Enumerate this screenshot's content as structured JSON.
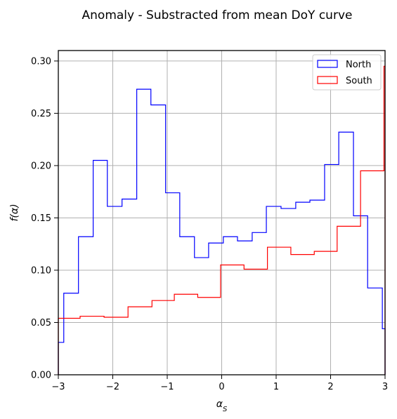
{
  "chart_data": {
    "type": "histogram-step",
    "title": "Anomaly - Substracted from mean DoY curve",
    "xlabel": "α_S",
    "xlabel_main": "α",
    "xlabel_sub": "S",
    "ylabel": "f(α)",
    "xlim": [
      -3,
      3
    ],
    "ylim": [
      0,
      0.31
    ],
    "xticks": [
      -3,
      -2,
      -1,
      0,
      1,
      2,
      3
    ],
    "xtick_labels": [
      "−3",
      "−2",
      "−1",
      "0",
      "1",
      "2",
      "3"
    ],
    "yticks": [
      0.0,
      0.05,
      0.1,
      0.15,
      0.2,
      0.25,
      0.3
    ],
    "ytick_labels": [
      "0.00",
      "0.05",
      "0.10",
      "0.15",
      "0.20",
      "0.25",
      "0.30"
    ],
    "grid": true,
    "legend_position": "top-right",
    "series": [
      {
        "name": "North",
        "color": "#0000ff",
        "edges": [
          -3.0,
          -2.9,
          -2.63,
          -2.36,
          -2.1,
          -1.83,
          -1.56,
          -1.3,
          -1.03,
          -0.77,
          -0.5,
          -0.24,
          0.03,
          0.29,
          0.56,
          0.82,
          1.09,
          1.36,
          1.62,
          1.89,
          2.15,
          2.42,
          2.68,
          2.95,
          3.0
        ],
        "values": [
          0.031,
          0.078,
          0.132,
          0.205,
          0.161,
          0.168,
          0.273,
          0.258,
          0.174,
          0.132,
          0.112,
          0.126,
          0.132,
          0.128,
          0.136,
          0.161,
          0.159,
          0.165,
          0.167,
          0.201,
          0.232,
          0.152,
          0.083,
          0.044
        ]
      },
      {
        "name": "South",
        "color": "#ff0000",
        "edges": [
          -3.0,
          -2.6,
          -2.16,
          -1.72,
          -1.28,
          -0.87,
          -0.44,
          -0.02,
          0.41,
          0.84,
          1.27,
          1.7,
          2.12,
          2.55,
          2.98,
          3.0
        ],
        "values": [
          0.054,
          0.056,
          0.055,
          0.065,
          0.071,
          0.077,
          0.074,
          0.105,
          0.101,
          0.122,
          0.115,
          0.118,
          0.142,
          0.195,
          0.295
        ]
      }
    ]
  }
}
